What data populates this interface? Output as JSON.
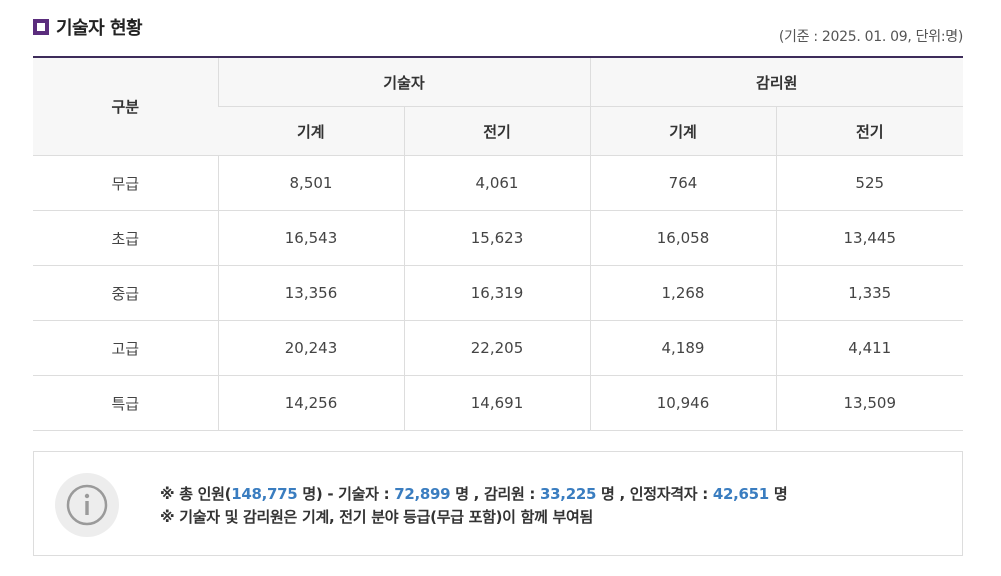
{
  "title": "기술자 현황",
  "base_note": "(기준 : 2025. 01. 09, 단위:명)",
  "table": {
    "col_header": "구분",
    "groups": [
      "기술자",
      "감리원"
    ],
    "subheaders": [
      "기계",
      "전기",
      "기계",
      "전기"
    ],
    "rows": [
      {
        "label": "무급",
        "values": [
          "8,501",
          "4,061",
          "764",
          "525"
        ]
      },
      {
        "label": "초급",
        "values": [
          "16,543",
          "15,623",
          "16,058",
          "13,445"
        ]
      },
      {
        "label": "중급",
        "values": [
          "13,356",
          "16,319",
          "1,268",
          "1,335"
        ]
      },
      {
        "label": "고급",
        "values": [
          "20,243",
          "22,205",
          "4,189",
          "4,411"
        ]
      },
      {
        "label": "특급",
        "values": [
          "14,256",
          "14,691",
          "10,946",
          "13,509"
        ]
      }
    ]
  },
  "info": {
    "icon": "info-icon",
    "line1": {
      "p1": "※ 총 인원(",
      "total": "148,775",
      "p2": " 명) - 기술자 : ",
      "engineers": "72,899",
      "p3": " 명 , 감리원 : ",
      "supervisors": "33,225",
      "p4": " 명 , 인정자격자 : ",
      "certified": "42,651",
      "p5": " 명"
    },
    "line2": "※ 기술자 및 감리원은 기계, 전기 분야 등급(무급 포함)이 함께 부여됨"
  },
  "colors": {
    "accent": "#5b2d7d",
    "table_top_border": "#3d2c5a",
    "highlight": "#3a7dc0"
  }
}
